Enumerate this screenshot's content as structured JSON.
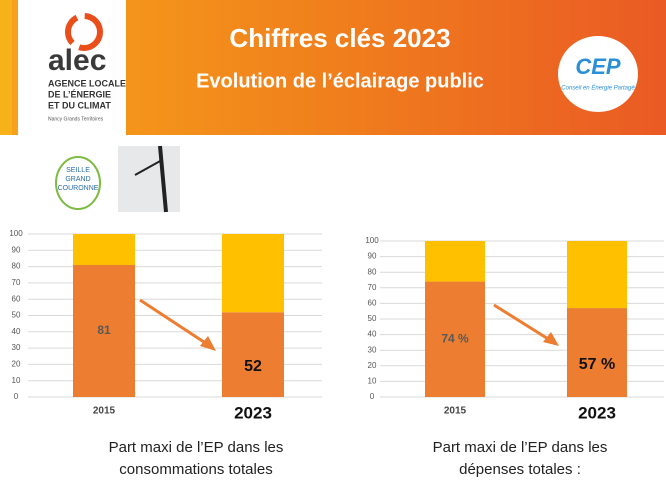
{
  "header": {
    "title": "Chiffres clés 2023",
    "subtitle": "Evolution de l’éclairage public"
  },
  "logos": {
    "alec": "alec",
    "alec_full": [
      "AGENCE LOCALE",
      "DE L’ÉNERGIE",
      "ET DU CLIMAT"
    ],
    "alec_region": "Nancy Grands Territoires",
    "cep": "CEP",
    "cep_tagline": "Conseil en Énergie Partagé",
    "seille": [
      "SEILLE",
      "GRAND",
      "COURONNE"
    ]
  },
  "chart_data": [
    {
      "type": "stacked-bar",
      "title": [
        "Part maxi de l’EP dans les",
        "consommations totales"
      ],
      "categories": [
        "2015",
        "2023"
      ],
      "series": [
        {
          "color": "#ed7d31",
          "values": [
            81,
            52
          ]
        },
        {
          "color": "#ffc000",
          "values": [
            19,
            48
          ]
        }
      ],
      "ylim": [
        0,
        100
      ],
      "yticks": [
        0,
        10,
        20,
        30,
        40,
        50,
        60,
        70,
        80,
        90,
        100
      ],
      "grid": true
    },
    {
      "type": "stacked-bar",
      "title": [
        "Part maxi de l’EP dans les",
        "dépenses totales :"
      ],
      "categories": [
        "2015",
        "2023"
      ],
      "series": [
        {
          "color": "#ed7d31",
          "values": [
            74,
            57
          ],
          "value_labels": [
            "74 %",
            "57 %"
          ]
        },
        {
          "color": "#ffc000",
          "values": [
            26,
            43
          ]
        }
      ],
      "ylim": [
        0,
        100
      ],
      "yticks": [
        0,
        10,
        20,
        30,
        40,
        50,
        60,
        70,
        80,
        90,
        100
      ],
      "grid": true
    }
  ]
}
